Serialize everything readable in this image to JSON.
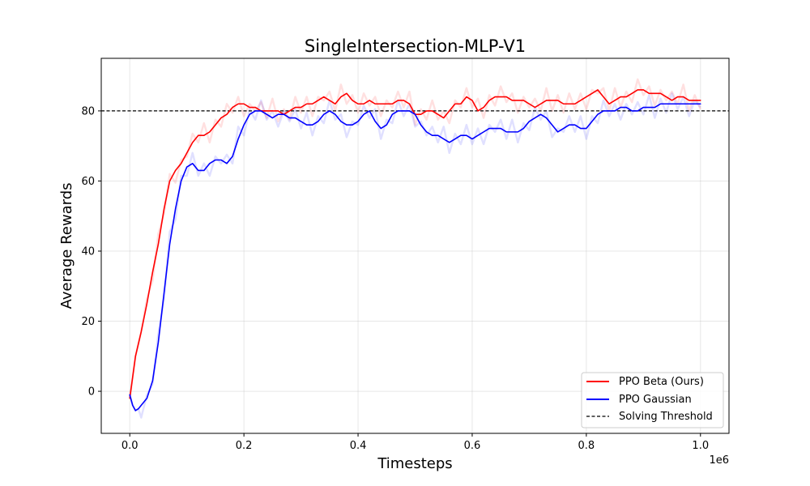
{
  "chart_data": {
    "type": "line",
    "title": "SingleIntersection-MLP-V1",
    "xlabel": "Timesteps",
    "ylabel": "Average Rewards",
    "x_offset_label": "1e6",
    "xlim": [
      -0.05,
      1.05
    ],
    "ylim": [
      -12,
      95
    ],
    "xticks": [
      0,
      0.2,
      0.4,
      0.6,
      0.8,
      1.0
    ],
    "xtick_labels": [
      "0.0",
      "0.2",
      "0.4",
      "0.6",
      "0.8",
      "1.0"
    ],
    "yticks": [
      0,
      20,
      40,
      60,
      80
    ],
    "ytick_labels": [
      "0",
      "20",
      "40",
      "60",
      "80"
    ],
    "grid": true,
    "legend_position": "bottom-right",
    "threshold": {
      "name": "Solving Threshold",
      "value": 80,
      "color": "#000000"
    },
    "series": [
      {
        "name": "PPO Beta (Ours)",
        "color": "#ff0000",
        "x": [
          0.0,
          0.005,
          0.01,
          0.02,
          0.03,
          0.04,
          0.05,
          0.06,
          0.07,
          0.08,
          0.09,
          0.1,
          0.11,
          0.12,
          0.13,
          0.14,
          0.15,
          0.16,
          0.17,
          0.18,
          0.19,
          0.2,
          0.21,
          0.22,
          0.23,
          0.24,
          0.25,
          0.26,
          0.27,
          0.28,
          0.29,
          0.3,
          0.31,
          0.32,
          0.33,
          0.34,
          0.35,
          0.36,
          0.37,
          0.38,
          0.39,
          0.4,
          0.41,
          0.42,
          0.43,
          0.44,
          0.45,
          0.46,
          0.47,
          0.48,
          0.49,
          0.5,
          0.51,
          0.52,
          0.53,
          0.54,
          0.55,
          0.56,
          0.57,
          0.58,
          0.59,
          0.6,
          0.61,
          0.62,
          0.63,
          0.64,
          0.65,
          0.66,
          0.67,
          0.68,
          0.69,
          0.7,
          0.71,
          0.72,
          0.73,
          0.74,
          0.75,
          0.76,
          0.77,
          0.78,
          0.79,
          0.8,
          0.81,
          0.82,
          0.83,
          0.84,
          0.85,
          0.86,
          0.87,
          0.88,
          0.89,
          0.9,
          0.91,
          0.92,
          0.93,
          0.94,
          0.95,
          0.96,
          0.97,
          0.98,
          0.99,
          1.0
        ],
        "values": [
          -2,
          4,
          10,
          17,
          25,
          34,
          42,
          52,
          60,
          63,
          65,
          68,
          71,
          73,
          73,
          74,
          76,
          78,
          79,
          81,
          82,
          82,
          81,
          81,
          80,
          80,
          80,
          80,
          79,
          80,
          81,
          81,
          82,
          82,
          83,
          84,
          83,
          82,
          84,
          85,
          83,
          82,
          82,
          83,
          82,
          82,
          82,
          82,
          83,
          83,
          82,
          79,
          79,
          80,
          80,
          79,
          78,
          80,
          82,
          82,
          84,
          83,
          80,
          81,
          83,
          84,
          84,
          84,
          83,
          83,
          83,
          82,
          81,
          82,
          83,
          83,
          83,
          82,
          82,
          82,
          83,
          84,
          85,
          86,
          84,
          82,
          83,
          84,
          84,
          85,
          86,
          86,
          85,
          85,
          85,
          84,
          83,
          84,
          84,
          83,
          83,
          83
        ]
      },
      {
        "name": "PPO Gaussian",
        "color": "#0000ff",
        "x": [
          0.0,
          0.005,
          0.01,
          0.015,
          0.02,
          0.03,
          0.04,
          0.05,
          0.06,
          0.07,
          0.08,
          0.09,
          0.1,
          0.11,
          0.12,
          0.13,
          0.14,
          0.15,
          0.16,
          0.17,
          0.18,
          0.19,
          0.2,
          0.21,
          0.22,
          0.23,
          0.24,
          0.25,
          0.26,
          0.27,
          0.28,
          0.29,
          0.3,
          0.31,
          0.32,
          0.33,
          0.34,
          0.35,
          0.36,
          0.37,
          0.38,
          0.39,
          0.4,
          0.41,
          0.42,
          0.43,
          0.44,
          0.45,
          0.46,
          0.47,
          0.48,
          0.49,
          0.5,
          0.51,
          0.52,
          0.53,
          0.54,
          0.55,
          0.56,
          0.57,
          0.58,
          0.59,
          0.6,
          0.61,
          0.62,
          0.63,
          0.64,
          0.65,
          0.66,
          0.67,
          0.68,
          0.69,
          0.7,
          0.71,
          0.72,
          0.73,
          0.74,
          0.75,
          0.76,
          0.77,
          0.78,
          0.79,
          0.8,
          0.81,
          0.82,
          0.83,
          0.84,
          0.85,
          0.86,
          0.87,
          0.88,
          0.89,
          0.9,
          0.91,
          0.92,
          0.93,
          0.94,
          0.95,
          0.96,
          0.97,
          0.98,
          0.99,
          1.0
        ],
        "values": [
          -1,
          -4,
          -5.5,
          -5,
          -4,
          -2,
          3,
          14,
          28,
          42,
          52,
          60,
          64,
          65,
          63,
          63,
          65,
          66,
          66,
          65,
          67,
          72,
          76,
          79,
          80,
          80,
          79,
          78,
          79,
          79,
          78,
          78,
          77,
          76,
          76,
          77,
          79,
          80,
          79,
          77,
          76,
          76,
          77,
          79,
          80,
          77,
          75,
          76,
          79,
          80,
          80,
          80,
          79,
          76,
          74,
          73,
          73,
          72,
          71,
          72,
          73,
          73,
          72,
          73,
          74,
          75,
          75,
          75,
          74,
          74,
          74,
          75,
          77,
          78,
          79,
          78,
          76,
          74,
          75,
          76,
          76,
          75,
          75,
          77,
          79,
          80,
          80,
          80,
          81,
          81,
          80,
          80,
          81,
          81,
          81,
          82,
          82,
          82,
          82,
          82,
          82,
          82,
          82
        ]
      }
    ]
  }
}
